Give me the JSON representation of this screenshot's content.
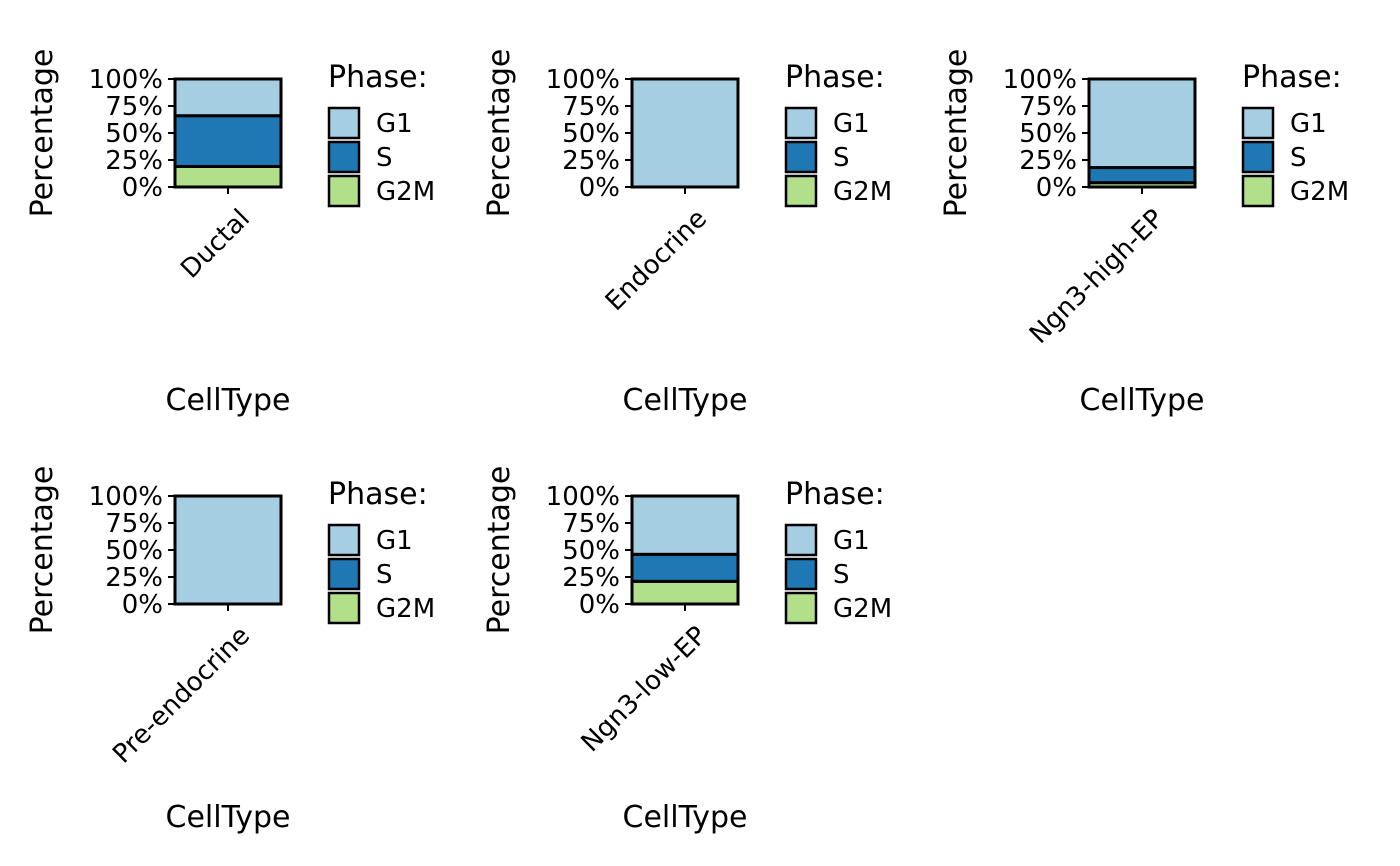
{
  "colors": {
    "G1": "#a6cee3",
    "S": "#1f78b4",
    "G2M": "#b2df8a",
    "outline": "#000000",
    "background": "#ffffff"
  },
  "chart_data": [
    {
      "type": "bar",
      "stacked": "percent",
      "categories": [
        "Ductal"
      ],
      "series": [
        {
          "name": "G1",
          "values": [
            34
          ]
        },
        {
          "name": "S",
          "values": [
            47
          ]
        },
        {
          "name": "G2M",
          "values": [
            19
          ]
        }
      ],
      "xlabel": "CellType",
      "ylabel": "Percentage",
      "ylim": [
        0,
        100
      ],
      "yticks": [
        "0%",
        "25%",
        "50%",
        "75%",
        "100%"
      ],
      "legend_title": "Phase:",
      "legend_position": "right",
      "grid": false
    },
    {
      "type": "bar",
      "stacked": "percent",
      "categories": [
        "Endocrine"
      ],
      "series": [
        {
          "name": "G1",
          "values": [
            100
          ]
        },
        {
          "name": "S",
          "values": [
            0
          ]
        },
        {
          "name": "G2M",
          "values": [
            0
          ]
        }
      ],
      "xlabel": "CellType",
      "ylabel": "Percentage",
      "ylim": [
        0,
        100
      ],
      "yticks": [
        "0%",
        "25%",
        "50%",
        "75%",
        "100%"
      ],
      "legend_title": "Phase:",
      "legend_position": "right",
      "grid": false
    },
    {
      "type": "bar",
      "stacked": "percent",
      "categories": [
        "Ngn3-high-EP"
      ],
      "series": [
        {
          "name": "G1",
          "values": [
            82
          ]
        },
        {
          "name": "S",
          "values": [
            14
          ]
        },
        {
          "name": "G2M",
          "values": [
            4
          ]
        }
      ],
      "xlabel": "CellType",
      "ylabel": "Percentage",
      "ylim": [
        0,
        100
      ],
      "yticks": [
        "0%",
        "25%",
        "50%",
        "75%",
        "100%"
      ],
      "legend_title": "Phase:",
      "legend_position": "right",
      "grid": false
    },
    {
      "type": "bar",
      "stacked": "percent",
      "categories": [
        "Pre-endocrine"
      ],
      "series": [
        {
          "name": "G1",
          "values": [
            100
          ]
        },
        {
          "name": "S",
          "values": [
            0
          ]
        },
        {
          "name": "G2M",
          "values": [
            0
          ]
        }
      ],
      "xlabel": "CellType",
      "ylabel": "Percentage",
      "ylim": [
        0,
        100
      ],
      "yticks": [
        "0%",
        "25%",
        "50%",
        "75%",
        "100%"
      ],
      "legend_title": "Phase:",
      "legend_position": "right",
      "grid": false
    },
    {
      "type": "bar",
      "stacked": "percent",
      "categories": [
        "Ngn3-low-EP"
      ],
      "series": [
        {
          "name": "G1",
          "values": [
            54
          ]
        },
        {
          "name": "S",
          "values": [
            25
          ]
        },
        {
          "name": "G2M",
          "values": [
            21
          ]
        }
      ],
      "xlabel": "CellType",
      "ylabel": "Percentage",
      "ylim": [
        0,
        100
      ],
      "yticks": [
        "0%",
        "25%",
        "50%",
        "75%",
        "100%"
      ],
      "legend_title": "Phase:",
      "legend_position": "right",
      "grid": false
    }
  ]
}
